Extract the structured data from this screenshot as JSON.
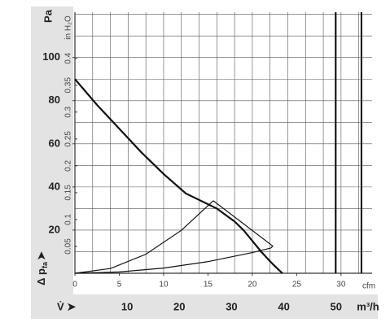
{
  "chart_data": {
    "type": "line",
    "y_unit": "Pa",
    "y2_unit": "in H₂O",
    "x_unit": "cfm",
    "x2_unit": "m³/h",
    "y_label": [
      "Δ p",
      "fa",
      "➤"
    ],
    "x_label": "V̇ ➤",
    "xlim": [
      0,
      33.5
    ],
    "xticks": [
      0,
      5,
      10,
      15,
      20,
      25,
      30
    ],
    "x2lim": [
      0,
      56.9
    ],
    "x2ticks": [
      10,
      20,
      30,
      40,
      50
    ],
    "ylim": [
      0,
      121
    ],
    "yticks": [
      20,
      40,
      60,
      80,
      100
    ],
    "y2lim": [
      0,
      0.486
    ],
    "y2ticks": [
      0.05,
      0.1,
      0.15,
      0.2,
      0.25,
      0.3,
      0.35,
      0.4
    ],
    "limit_lines": [
      29.4,
      32.3
    ],
    "series": [
      {
        "color": "#111111",
        "x": [
          0,
          2.5,
          5,
          7.5,
          10,
          12.5,
          14,
          15,
          16,
          17,
          18,
          19,
          20,
          21,
          22,
          23,
          23.4
        ],
        "values": [
          90,
          78,
          67,
          56,
          46,
          37,
          34,
          32,
          30,
          27,
          24,
          20,
          15,
          10,
          5.5,
          1.5,
          0
        ]
      },
      {
        "color": "#111111",
        "x": [
          0,
          4,
          8,
          12,
          15.6
        ],
        "values": [
          0,
          2.2,
          8.8,
          19.9,
          33.6
        ]
      },
      {
        "color": "#111111",
        "x": [
          0,
          5,
          10,
          15,
          20,
          22.1
        ],
        "values": [
          0,
          0.6,
          2.4,
          5.4,
          9.6,
          11.7
        ]
      },
      {
        "color": "#111111",
        "x": [
          15.6,
          22.3,
          22.1
        ],
        "values": [
          33.6,
          12.6,
          11.7
        ]
      }
    ]
  }
}
